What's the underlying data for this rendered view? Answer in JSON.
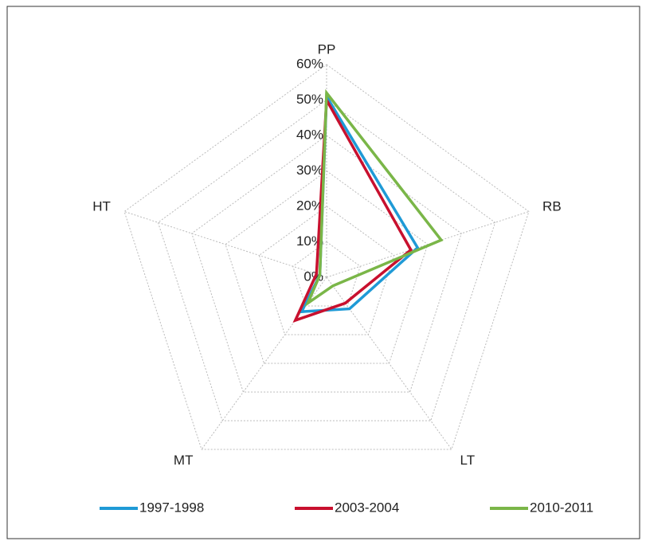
{
  "chart_data": {
    "type": "radar",
    "categories": [
      "PP",
      "RB",
      "LT",
      "MT",
      "HT"
    ],
    "ylim": [
      0,
      60
    ],
    "yticks": [
      {
        "value": 0,
        "label": "0%"
      },
      {
        "value": 10,
        "label": "10%"
      },
      {
        "value": 20,
        "label": "20%"
      },
      {
        "value": 30,
        "label": "30%"
      },
      {
        "value": 40,
        "label": "40%"
      },
      {
        "value": 50,
        "label": "50%"
      },
      {
        "value": 60,
        "label": "60%"
      }
    ],
    "grid": true,
    "legend": "bottom",
    "series": [
      {
        "name": "1997-1998",
        "color": "#1f9ad6",
        "values": [
          51,
          27,
          11,
          12,
          2
        ]
      },
      {
        "name": "2003-2004",
        "color": "#c8102e",
        "values": [
          50,
          25,
          9,
          15,
          3
        ]
      },
      {
        "name": "2010-2011",
        "color": "#7ab648",
        "values": [
          52,
          34,
          3,
          9,
          2
        ]
      }
    ]
  }
}
